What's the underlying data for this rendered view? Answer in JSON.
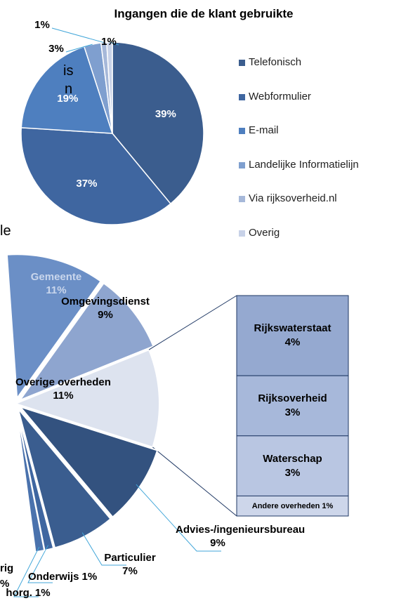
{
  "fragments": [
    "is",
    "n",
    "le",
    "rig",
    "%"
  ],
  "chart_data": [
    {
      "type": "pie",
      "title": "Ingangen die de klant gebruikte",
      "categories": [
        "Telefonisch",
        "Webformulier",
        "E-mail",
        "Landelijke Informatielijn",
        "Via rijksoverheid.nl",
        "Overig"
      ],
      "values": [
        39,
        37,
        19,
        3,
        1,
        1
      ],
      "value_labels": [
        "39%",
        "37%",
        "19%",
        "3%",
        "1%",
        "1%"
      ],
      "colors": [
        "#3b5d8e",
        "#3f66a0",
        "#4e7fbf",
        "#7f9fcf",
        "#a6b8d9",
        "#c8d2e8"
      ],
      "legend": "right"
    },
    {
      "type": "pie-of-bar",
      "categories": [
        "Gemeente",
        "Omgevingsdienst",
        "Overige overheden",
        "Advies-/ingenieursbureau",
        "Particulier",
        "Onderwijs",
        "horg."
      ],
      "values": [
        11,
        9,
        11,
        9,
        7,
        1,
        1
      ],
      "value_labels": [
        "11%",
        "9%",
        "11%",
        "9%",
        "7%",
        "1%",
        "1%"
      ],
      "colors": [
        "#6b8fc6",
        "#8ea5cf",
        "#dde3ef",
        "#33527f",
        "#3a5d8f",
        "#3f66a0",
        "#4a72ad"
      ],
      "bar": {
        "categories": [
          "Rijkswaterstaat",
          "Rijksoverheid",
          "Waterschap",
          "Andere overheden"
        ],
        "values": [
          4,
          3,
          3,
          1
        ],
        "value_labels": [
          "4%",
          "3%",
          "3%",
          "1%"
        ],
        "colors": [
          "#95a9d0",
          "#a7b8da",
          "#b9c6e2",
          "#cdd6ea"
        ]
      }
    }
  ]
}
